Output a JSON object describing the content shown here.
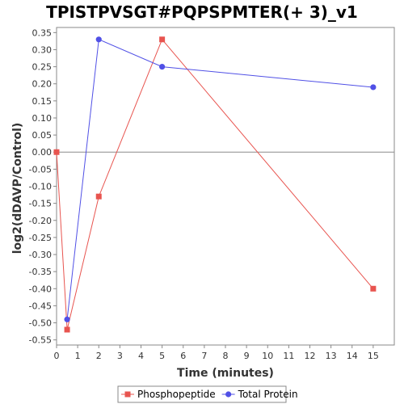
{
  "chart_data": {
    "type": "line",
    "title": "TPISTPVSGT#PQPSPMTER(+ 3)_v1",
    "xlabel": "Time (minutes)",
    "ylabel": "log2(dDAVP/Control)",
    "xlim": [
      0,
      16
    ],
    "ylim": [
      -0.565,
      0.365
    ],
    "x_ticks": [
      "0",
      "1",
      "2",
      "3",
      "4",
      "5",
      "6",
      "7",
      "8",
      "9",
      "10",
      "11",
      "12",
      "13",
      "14",
      "15"
    ],
    "y_ticks": [
      "0.35",
      "0.30",
      "0.25",
      "0.20",
      "0.15",
      "0.10",
      "0.05",
      "0.00",
      "-0.05",
      "-0.10",
      "-0.15",
      "-0.20",
      "-0.25",
      "-0.30",
      "-0.35",
      "-0.40",
      "-0.45",
      "-0.50",
      "-0.55"
    ],
    "zero_line": true,
    "legend_position": "bottom",
    "series": [
      {
        "name": "Phosphopeptide",
        "color": "#e8544f",
        "marker": "square",
        "x": [
          0,
          0.5,
          2,
          5,
          15
        ],
        "y": [
          0.0,
          -0.52,
          -0.13,
          0.33,
          -0.4
        ]
      },
      {
        "name": "Total Protein",
        "color": "#5050e6",
        "marker": "circle",
        "x": [
          0.5,
          2,
          5,
          15
        ],
        "y": [
          -0.49,
          0.33,
          0.25,
          0.19
        ]
      }
    ]
  }
}
